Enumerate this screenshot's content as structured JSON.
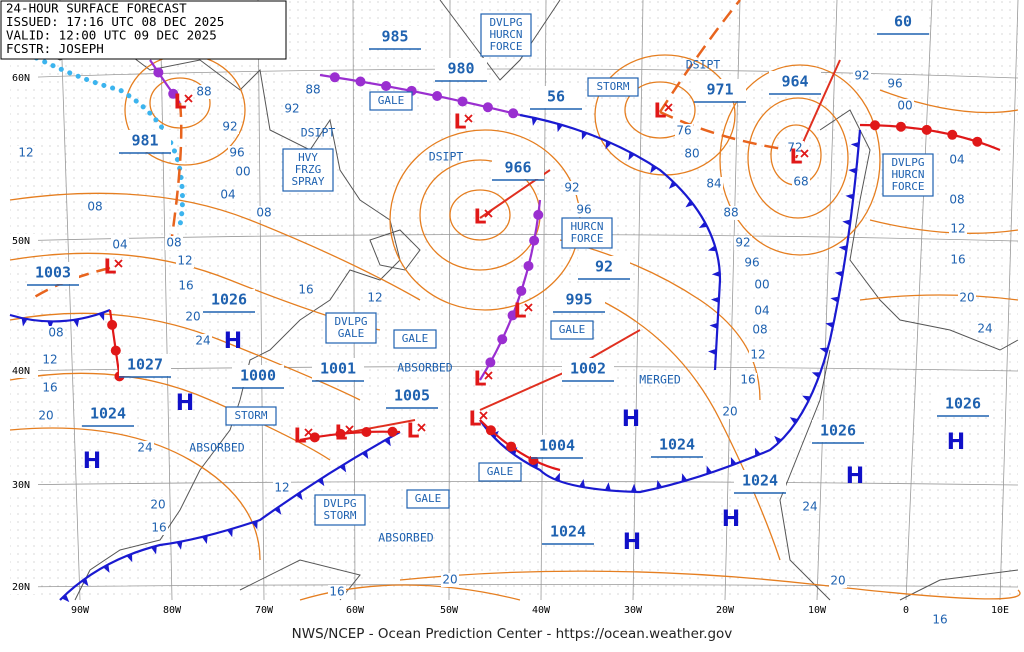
{
  "header": {
    "lines": [
      "24-HOUR SURFACE FORECAST",
      "ISSUED: 17:16 UTC 08 DEC 2025",
      "VALID: 12:00 UTC 09 DEC 2025",
      "FCSTR: JOSEPH"
    ]
  },
  "footer": "NWS/NCEP - Ocean Prediction Center - https://ocean.weather.gov",
  "lat_labels": [
    "60N",
    "50N",
    "40N",
    "30N",
    "20N"
  ],
  "lon_labels": [
    "90W",
    "80W",
    "70W",
    "60W",
    "50W",
    "40W",
    "30W",
    "20W",
    "10W",
    "0",
    "10E"
  ],
  "pressures": [
    "985",
    "980",
    "56",
    "966",
    "971",
    "964",
    "60",
    "981",
    "1003",
    "1026",
    "1027",
    "1024",
    "1000",
    "1001",
    "1005",
    "995",
    "92",
    "1002",
    "1004",
    "1024",
    "1024",
    "1026",
    "1024",
    "1026"
  ],
  "boxes": [
    [
      "GALE"
    ],
    [
      "HVY",
      "FRZG",
      "SPRAY"
    ],
    [
      "DVLPG",
      "HURCN",
      "FORCE"
    ],
    [
      "STORM"
    ],
    [
      "HURCN",
      "FORCE"
    ],
    [
      "DVLPG",
      "HURCN",
      "FORCE"
    ],
    [
      "DVLPG",
      "GALE"
    ],
    [
      "GALE"
    ],
    [
      "GALE"
    ],
    [
      "STORM"
    ],
    [
      "GALE"
    ],
    [
      "DVLPG",
      "STORM"
    ],
    [
      "GALE"
    ]
  ],
  "labels": [
    "DSIPT",
    "DSIPT",
    "DSIPT",
    "ABSORBED",
    "ABSORBED",
    "ABSORBED",
    "MERGED"
  ],
  "highs": [
    "H",
    "H",
    "H",
    "H",
    "H",
    "H",
    "H",
    "H"
  ],
  "lows": [
    "L",
    "L",
    "L",
    "L",
    "L",
    "L",
    "L",
    "L",
    "L",
    "L",
    "L",
    "L"
  ],
  "isobar_labels": [
    "88",
    "92",
    "96",
    "00",
    "04",
    "08",
    "08",
    "12",
    "04",
    "08",
    "12",
    "16",
    "20",
    "24",
    "08",
    "12",
    "16",
    "20",
    "24",
    "20",
    "16",
    "12",
    "16",
    "12",
    "92",
    "88",
    "76",
    "80",
    "84",
    "88",
    "92",
    "96",
    "00",
    "04",
    "08",
    "12",
    "16",
    "20",
    "24",
    "20",
    "16",
    "20",
    "16",
    "92",
    "96",
    "72",
    "68",
    "92",
    "96",
    "00",
    "04",
    "08",
    "12",
    "16",
    "20",
    "24"
  ]
}
